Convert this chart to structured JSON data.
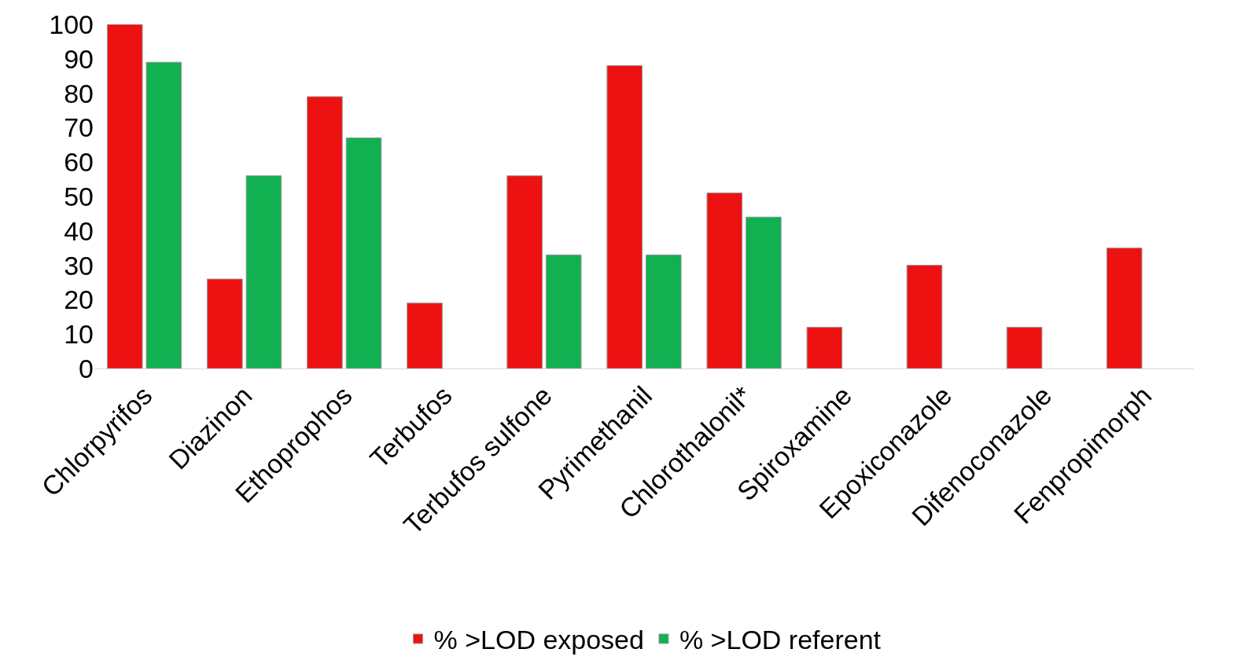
{
  "chart_data": {
    "type": "bar",
    "categories": [
      "Chlorpyrifos",
      "Diazinon",
      "Ethoprophos",
      "Terbufos",
      "Terbufos sulfone",
      "Pyrimethanil",
      "Chlorothalonil*",
      "Spiroxamine",
      "Epoxiconazole",
      "Difenoconazole",
      "Fenpropimorph"
    ],
    "series": [
      {
        "name": "% >LOD exposed",
        "color": "#ee1111",
        "values": [
          100,
          26,
          79,
          19,
          56,
          88,
          51,
          12,
          30,
          12,
          35
        ]
      },
      {
        "name": "% >LOD referent",
        "color": "#11b050",
        "values": [
          89,
          56,
          67,
          null,
          33,
          33,
          44,
          null,
          null,
          null,
          null
        ]
      }
    ],
    "ylim": [
      0,
      100
    ],
    "yticks": [
      0,
      10,
      20,
      30,
      40,
      50,
      60,
      70,
      80,
      90,
      100
    ],
    "legend": "bottom"
  }
}
